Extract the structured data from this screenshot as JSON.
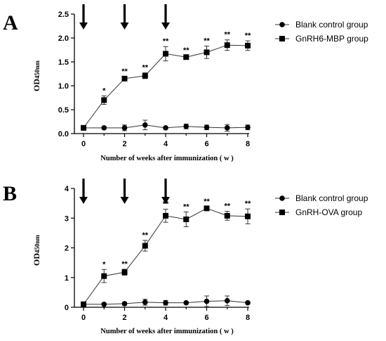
{
  "chart_data": [
    {
      "panel": "A",
      "type": "line",
      "ylabel_main": "OD",
      "ylabel_sub": "450nm",
      "xlabel": "Number of weeks after immunization ( w )",
      "xticks": [
        "0",
        "2",
        "4",
        "6",
        "8"
      ],
      "yticks": [
        "0.0",
        "0.5",
        "1.0",
        "1.5",
        "2.0",
        "2.5"
      ],
      "xlim": [
        0,
        8
      ],
      "ylim": [
        0,
        2.5
      ],
      "arrows_at": [
        0,
        2,
        4
      ],
      "series": [
        {
          "name": "Blank control group",
          "marker": "circle",
          "x": [
            0,
            1,
            2,
            3,
            4,
            5,
            6,
            7,
            8
          ],
          "y": [
            0.12,
            0.12,
            0.12,
            0.18,
            0.12,
            0.15,
            0.13,
            0.12,
            0.13
          ],
          "err": [
            0.02,
            0.02,
            0.06,
            0.1,
            0.02,
            0.05,
            0.05,
            0.07,
            0.05
          ]
        },
        {
          "name": "GnRH6-MBP group",
          "marker": "square",
          "x": [
            0,
            1,
            2,
            3,
            4,
            5,
            6,
            7,
            8
          ],
          "y": [
            0.12,
            0.7,
            1.15,
            1.21,
            1.67,
            1.6,
            1.7,
            1.85,
            1.84
          ],
          "err": [
            0.02,
            0.09,
            0.04,
            0.06,
            0.15,
            0.03,
            0.13,
            0.11,
            0.1
          ],
          "significance": [
            "",
            "*",
            "**",
            "**",
            "**",
            "**",
            "**",
            "**",
            "**"
          ]
        }
      ]
    },
    {
      "panel": "B",
      "type": "line",
      "ylabel_main": "OD",
      "ylabel_sub": "450nm",
      "xlabel": "Number of weeks after immunization ( w )",
      "xticks": [
        "0",
        "2",
        "4",
        "6",
        "8"
      ],
      "yticks": [
        "0",
        "1",
        "2",
        "3",
        "4"
      ],
      "xlim": [
        0,
        8
      ],
      "ylim": [
        0,
        4
      ],
      "arrows_at": [
        0,
        2,
        4
      ],
      "series": [
        {
          "name": "Blank control group",
          "marker": "circle",
          "x": [
            0,
            1,
            2,
            3,
            4,
            5,
            6,
            7,
            8
          ],
          "y": [
            0.1,
            0.1,
            0.12,
            0.17,
            0.15,
            0.15,
            0.2,
            0.22,
            0.15
          ],
          "err": [
            0.03,
            0.03,
            0.05,
            0.1,
            0.08,
            0.04,
            0.18,
            0.16,
            0.04
          ]
        },
        {
          "name": "GnRH-OVA group",
          "marker": "square",
          "x": [
            0,
            1,
            2,
            3,
            4,
            5,
            6,
            7,
            8
          ],
          "y": [
            0.1,
            1.05,
            1.18,
            2.07,
            3.08,
            2.96,
            3.33,
            3.08,
            3.06
          ],
          "err": [
            0.03,
            0.22,
            0.1,
            0.18,
            0.22,
            0.25,
            0.05,
            0.15,
            0.25
          ],
          "significance": [
            "",
            "*",
            "**",
            "**",
            "**",
            "**",
            "**",
            "**",
            "**"
          ]
        }
      ]
    }
  ]
}
